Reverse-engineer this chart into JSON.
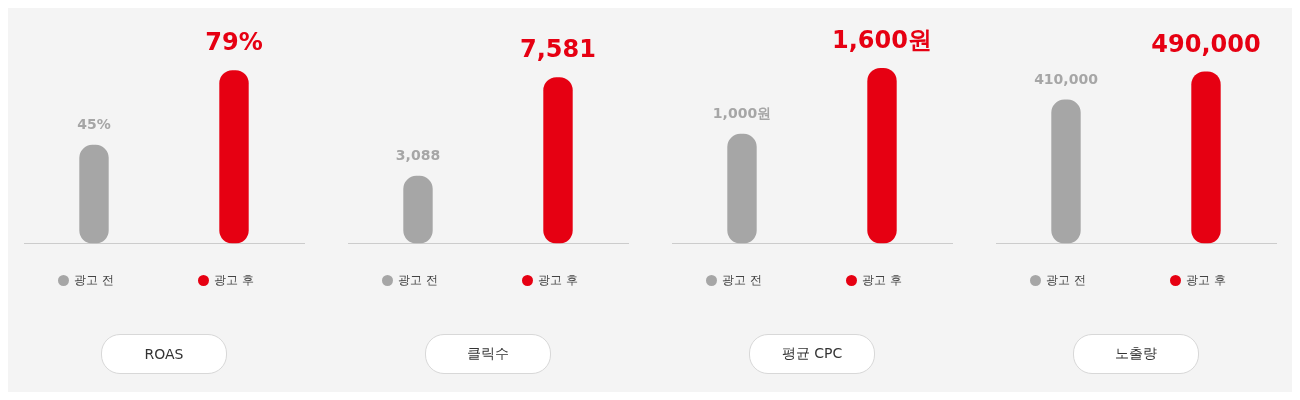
{
  "chart_data": [
    {
      "type": "bar",
      "title": "ROAS",
      "categories": [
        "광고 전",
        "광고 후"
      ],
      "colors": [
        "#a6a6a6",
        "#e60012"
      ],
      "values": [
        45,
        79
      ],
      "value_labels": [
        "45%",
        "79%"
      ]
    },
    {
      "type": "bar",
      "title": "클릭수",
      "categories": [
        "광고 전",
        "광고 후"
      ],
      "colors": [
        "#a6a6a6",
        "#e60012"
      ],
      "values": [
        3088,
        7581
      ],
      "value_labels": [
        "3,088",
        "7,581"
      ]
    },
    {
      "type": "bar",
      "title": "평균 CPC",
      "categories": [
        "광고 전",
        "광고 후"
      ],
      "colors": [
        "#a6a6a6",
        "#e60012"
      ],
      "values": [
        1000,
        1600
      ],
      "value_labels": [
        "1,000원",
        "1,600원"
      ]
    },
    {
      "type": "bar",
      "title": "노출량",
      "categories": [
        "광고 전",
        "광고 후"
      ],
      "colors": [
        "#a6a6a6",
        "#e60012"
      ],
      "values": [
        410000,
        490000
      ],
      "value_labels": [
        "410,000",
        "490,000"
      ]
    }
  ]
}
